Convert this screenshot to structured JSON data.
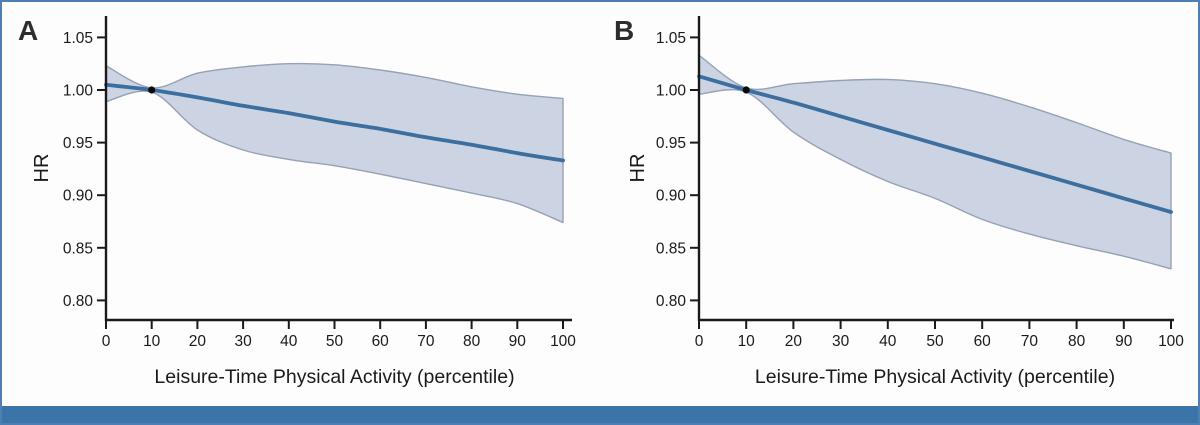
{
  "page": {
    "background": "#fdfdfd",
    "border_color": "#4d7fb4",
    "footer_bar_color": "#3b74a9"
  },
  "chart_data": [
    {
      "type": "line",
      "panel_label": "A",
      "xlabel": "Leisure-Time Physical Activity (percentile)",
      "ylabel": "HR",
      "x_ticks": [
        0,
        10,
        20,
        30,
        40,
        50,
        60,
        70,
        80,
        90,
        100
      ],
      "y_ticks": [
        1.05,
        1.0,
        0.95,
        0.9,
        0.85,
        0.8
      ],
      "xlim": [
        0,
        100
      ],
      "ylim": [
        0.78,
        1.07
      ],
      "grid": false,
      "x": [
        0,
        10,
        20,
        30,
        40,
        50,
        60,
        70,
        80,
        90,
        100
      ],
      "series": [
        {
          "name": "HR estimate",
          "values": [
            1.005,
            1.0,
            0.993,
            0.985,
            0.978,
            0.97,
            0.963,
            0.955,
            0.948,
            0.94,
            0.933
          ]
        },
        {
          "name": "CI upper",
          "values": [
            1.023,
            1.002,
            1.016,
            1.022,
            1.025,
            1.024,
            1.019,
            1.012,
            1.003,
            0.996,
            0.992
          ]
        },
        {
          "name": "CI lower",
          "values": [
            0.989,
            0.998,
            0.962,
            0.943,
            0.934,
            0.928,
            0.92,
            0.911,
            0.902,
            0.892,
            0.874
          ]
        }
      ],
      "reference_point": {
        "x": 10,
        "y": 1.0
      },
      "colors": {
        "line": "#3c6f9f",
        "band_fill": "#ccd3e3",
        "band_edge": "#96a1b5",
        "axis": "#1a1a1a",
        "dot": "#0a0a0a",
        "label": "#2d2d2d"
      }
    },
    {
      "type": "line",
      "panel_label": "B",
      "xlabel": "Leisure-Time Physical Activity (percentile)",
      "ylabel": "HR",
      "x_ticks": [
        0,
        10,
        20,
        30,
        40,
        50,
        60,
        70,
        80,
        90,
        100
      ],
      "y_ticks": [
        1.05,
        1.0,
        0.95,
        0.9,
        0.85,
        0.8
      ],
      "xlim": [
        0,
        100
      ],
      "ylim": [
        0.78,
        1.07
      ],
      "grid": false,
      "x": [
        0,
        10,
        20,
        30,
        40,
        50,
        60,
        70,
        80,
        90,
        100
      ],
      "series": [
        {
          "name": "HR estimate",
          "values": [
            1.013,
            1.0,
            0.988,
            0.975,
            0.962,
            0.949,
            0.936,
            0.923,
            0.91,
            0.897,
            0.884
          ]
        },
        {
          "name": "CI upper",
          "values": [
            1.033,
            1.002,
            1.006,
            1.009,
            1.01,
            1.006,
            0.997,
            0.984,
            0.969,
            0.953,
            0.94
          ]
        },
        {
          "name": "CI lower",
          "values": [
            0.996,
            0.998,
            0.96,
            0.934,
            0.913,
            0.897,
            0.877,
            0.863,
            0.852,
            0.842,
            0.83
          ]
        }
      ],
      "reference_point": {
        "x": 10,
        "y": 1.0
      },
      "colors": {
        "line": "#3c6f9f",
        "band_fill": "#ccd3e3",
        "band_edge": "#96a1b5",
        "axis": "#1a1a1a",
        "dot": "#0a0a0a",
        "label": "#2d2d2d"
      }
    }
  ]
}
